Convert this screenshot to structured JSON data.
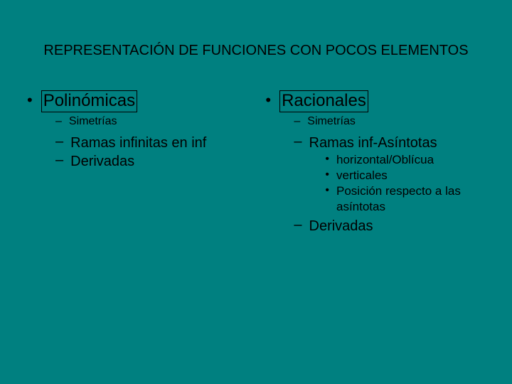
{
  "background_color": "#008080",
  "text_color": "#000000",
  "title": "REPRESENTACIÓN DE FUNCIONES CON POCOS ELEMENTOS",
  "left": {
    "heading": "Polinómicas",
    "items": [
      {
        "label": "Simetrías",
        "size": "small"
      },
      {
        "label": "Ramas infinitas en inf",
        "size": "big"
      },
      {
        "label": "Derivadas",
        "size": "big"
      }
    ]
  },
  "right": {
    "heading": "Racionales",
    "items": [
      {
        "label": "Simetrías",
        "size": "small"
      },
      {
        "label": "Ramas inf-Asíntotas",
        "size": "big",
        "sub": [
          "horizontal/Oblícua",
          "verticales",
          "Posición respecto a las asíntotas"
        ]
      },
      {
        "label": "Derivadas",
        "size": "big"
      }
    ]
  }
}
